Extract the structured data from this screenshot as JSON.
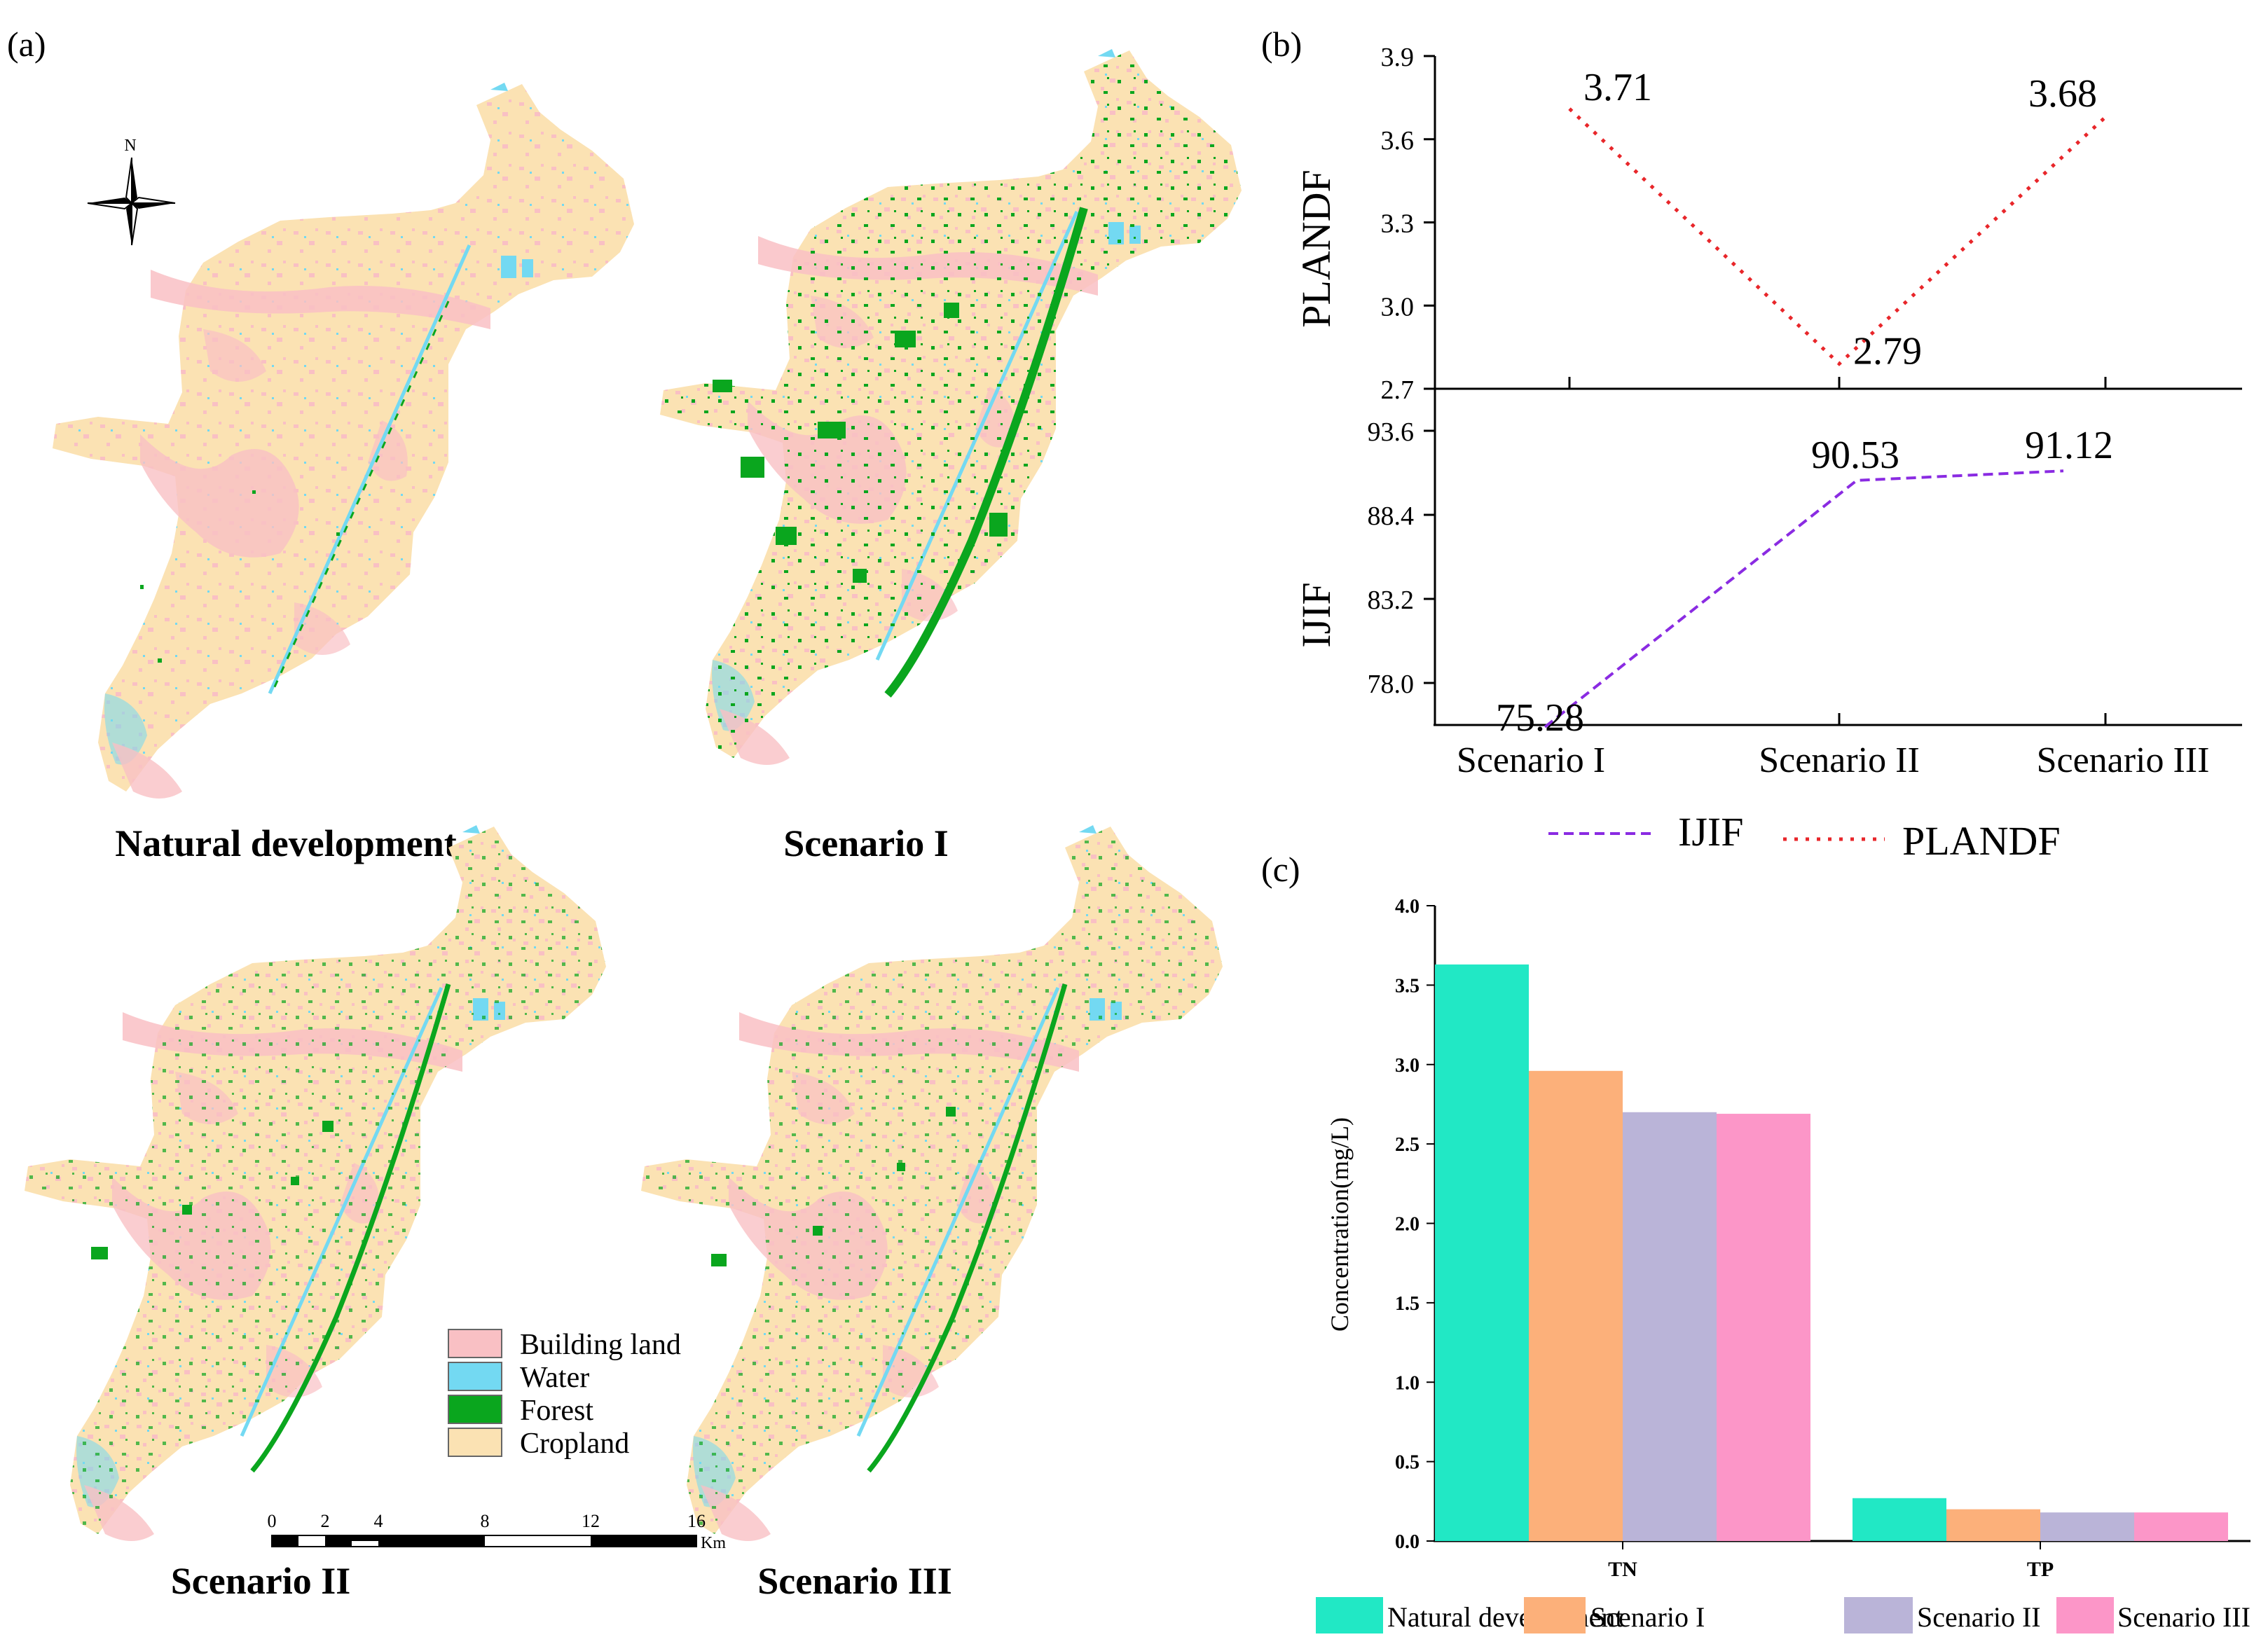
{
  "colors": {
    "building_land": "#F9C0C4",
    "water": "#73D9F2",
    "forest": "#0AA61E",
    "cropland": "#FBE2B3",
    "ijif_line": "#8A2BE2",
    "plandf_line": "#E8262A",
    "natural_development": "#21E8C5",
    "scenario_1": "#FCB07A",
    "scenario_2": "#BAB4D8",
    "scenario_3": "#FC96C8"
  },
  "panel_a": {
    "label": "(a)",
    "north_label": "N",
    "map_titles": [
      "Natural development",
      "Scenario I",
      "Scenario II",
      "Scenario III"
    ],
    "legend": [
      "Building land",
      "Water",
      "Forest",
      "Cropland"
    ],
    "scale_ticks": [
      "0",
      "2",
      "4",
      "8",
      "12",
      "16"
    ],
    "scale_unit": "Km"
  },
  "panel_b": {
    "label": "(b)",
    "legend": [
      "IJIF",
      "PLANDF"
    ]
  },
  "panel_c": {
    "label": "(c)"
  },
  "chart_data": [
    {
      "type": "line",
      "title": "(b) PLANDF",
      "categories": [
        "Scenario I",
        "Scenario II",
        "Scenario III"
      ],
      "ylabel": "PLANDF",
      "ylim": [
        2.7,
        3.9
      ],
      "yticks": [
        "3.9",
        "3.6",
        "3.3",
        "3.0",
        "2.7"
      ],
      "series": [
        {
          "name": "PLANDF",
          "values": [
            3.71,
            2.79,
            3.68
          ],
          "labels": [
            "3.71",
            "2.79",
            "3.68"
          ]
        }
      ]
    },
    {
      "type": "line",
      "title": "(b) IJIF",
      "categories": [
        "Scenario I",
        "Scenario II",
        "Scenario III"
      ],
      "ylabel": "IJIF",
      "ylim": [
        75.4,
        96.2
      ],
      "yticks": [
        "93.6",
        "88.4",
        "83.2",
        "78.0"
      ],
      "series": [
        {
          "name": "IJIF",
          "values": [
            75.28,
            90.53,
            91.12
          ],
          "labels": [
            "75.28",
            "90.53",
            "91.12"
          ]
        }
      ]
    },
    {
      "type": "bar",
      "title": "(c)",
      "categories": [
        "TN",
        "TP"
      ],
      "ylabel": "Concentration(mg/L)",
      "xlabel": "",
      "ylim": [
        0,
        4.0
      ],
      "yticks": [
        "0.0",
        "0.5",
        "1.0",
        "1.5",
        "2.0",
        "2.5",
        "3.0",
        "3.5",
        "4.0"
      ],
      "series": [
        {
          "name": "Natural development",
          "values": [
            3.63,
            0.27
          ]
        },
        {
          "name": "Scenario I",
          "values": [
            2.96,
            0.2
          ]
        },
        {
          "name": "Scenario II",
          "values": [
            2.7,
            0.18
          ]
        },
        {
          "name": "Scenario III",
          "values": [
            2.69,
            0.18
          ]
        }
      ]
    }
  ]
}
